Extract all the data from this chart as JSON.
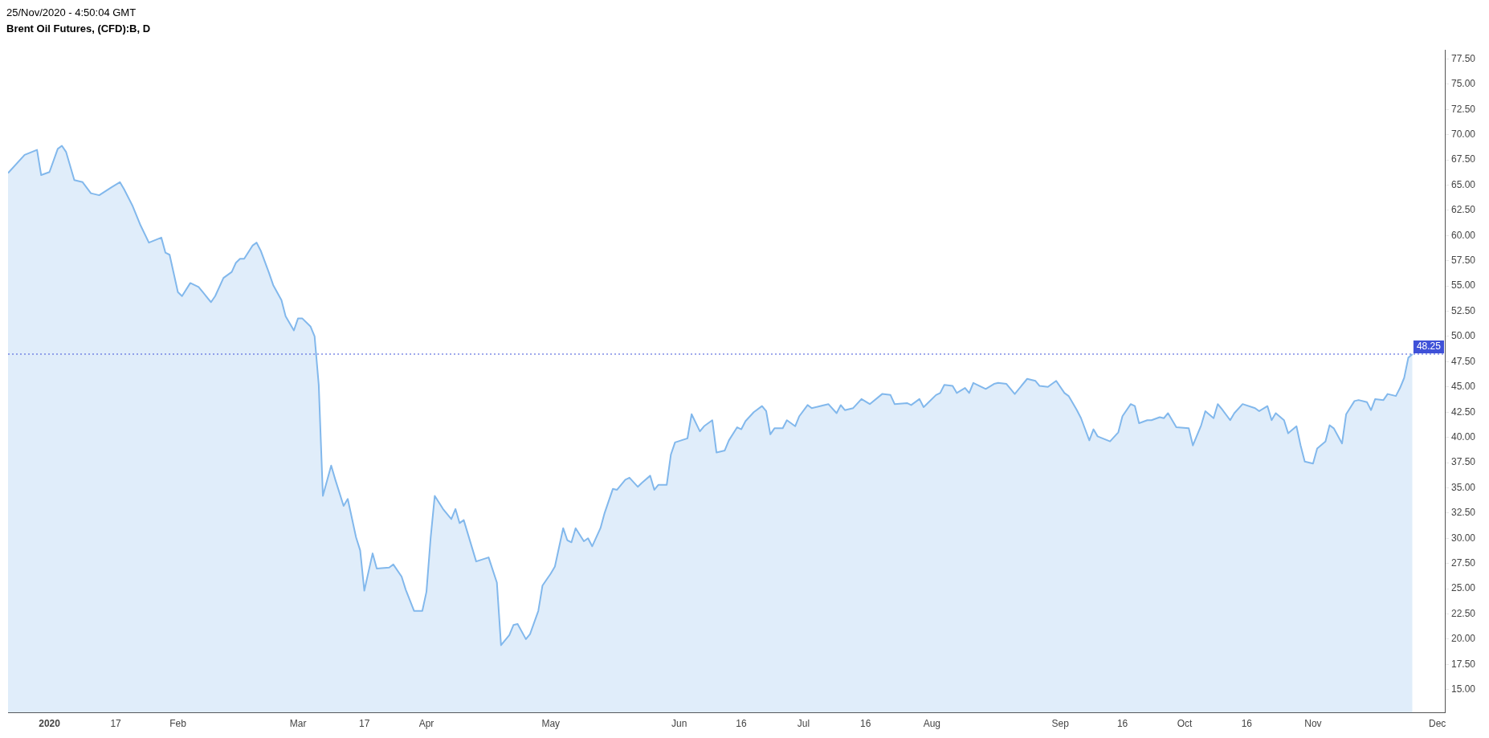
{
  "chart_data": {
    "type": "area",
    "title": "Brent Oil Futures, (CFD):B, D",
    "annotations": [
      "25/Nov/2020 - 4:50:04 GMT"
    ],
    "x": [
      "2019-12-22",
      "2019-12-26",
      "2019-12-29",
      "2019-12-30",
      "2020-01-01",
      "2020-01-03",
      "2020-01-04",
      "2020-01-05",
      "2020-01-07",
      "2020-01-09",
      "2020-01-11",
      "2020-01-13",
      "2020-01-16",
      "2020-01-18",
      "2020-01-19",
      "2020-01-21",
      "2020-01-23",
      "2020-01-25",
      "2020-01-28",
      "2020-01-29",
      "2020-01-30",
      "2020-02-01",
      "2020-02-02",
      "2020-02-04",
      "2020-02-06",
      "2020-02-07",
      "2020-02-09",
      "2020-02-10",
      "2020-02-12",
      "2020-02-14",
      "2020-02-15",
      "2020-02-16",
      "2020-02-17",
      "2020-02-19",
      "2020-02-20",
      "2020-02-21",
      "2020-02-23",
      "2020-02-24",
      "2020-02-26",
      "2020-02-27",
      "2020-02-29",
      "2020-03-01",
      "2020-03-02",
      "2020-03-04",
      "2020-03-05",
      "2020-03-06",
      "2020-03-07",
      "2020-03-09",
      "2020-03-10",
      "2020-03-12",
      "2020-03-13",
      "2020-03-15",
      "2020-03-16",
      "2020-03-17",
      "2020-03-19",
      "2020-03-20",
      "2020-03-23",
      "2020-03-24",
      "2020-03-26",
      "2020-03-27",
      "2020-03-29",
      "2020-03-31",
      "2020-04-01",
      "2020-04-02",
      "2020-04-03",
      "2020-04-05",
      "2020-04-07",
      "2020-04-08",
      "2020-04-09",
      "2020-04-10",
      "2020-04-13",
      "2020-04-16",
      "2020-04-18",
      "2020-04-19",
      "2020-04-21",
      "2020-04-22",
      "2020-04-23",
      "2020-04-25",
      "2020-04-26",
      "2020-04-28",
      "2020-04-29",
      "2020-05-01",
      "2020-05-02",
      "2020-05-04",
      "2020-05-05",
      "2020-05-06",
      "2020-05-07",
      "2020-05-09",
      "2020-05-10",
      "2020-05-11",
      "2020-05-13",
      "2020-05-14",
      "2020-05-16",
      "2020-05-17",
      "2020-05-19",
      "2020-05-20",
      "2020-05-22",
      "2020-05-23",
      "2020-05-25",
      "2020-05-26",
      "2020-05-27",
      "2020-05-29",
      "2020-05-30",
      "2020-05-31",
      "2020-06-03",
      "2020-06-04",
      "2020-06-06",
      "2020-06-07",
      "2020-06-09",
      "2020-06-10",
      "2020-06-12",
      "2020-06-13",
      "2020-06-15",
      "2020-06-16",
      "2020-06-17",
      "2020-06-19",
      "2020-06-21",
      "2020-06-22",
      "2020-06-23",
      "2020-06-24",
      "2020-06-26",
      "2020-06-27",
      "2020-06-29",
      "2020-06-30",
      "2020-07-02",
      "2020-07-03",
      "2020-07-05",
      "2020-07-07",
      "2020-07-09",
      "2020-07-10",
      "2020-07-11",
      "2020-07-13",
      "2020-07-15",
      "2020-07-17",
      "2020-07-20",
      "2020-07-22",
      "2020-07-23",
      "2020-07-26",
      "2020-07-27",
      "2020-07-29",
      "2020-07-30",
      "2020-07-31",
      "2020-08-02",
      "2020-08-03",
      "2020-08-04",
      "2020-08-06",
      "2020-08-07",
      "2020-08-09",
      "2020-08-10",
      "2020-08-11",
      "2020-08-13",
      "2020-08-14",
      "2020-08-16",
      "2020-08-17",
      "2020-08-19",
      "2020-08-21",
      "2020-08-24",
      "2020-08-26",
      "2020-08-27",
      "2020-08-29",
      "2020-08-30",
      "2020-08-31",
      "2020-09-02",
      "2020-09-03",
      "2020-09-05",
      "2020-09-06",
      "2020-09-08",
      "2020-09-09",
      "2020-09-10",
      "2020-09-13",
      "2020-09-15",
      "2020-09-16",
      "2020-09-18",
      "2020-09-19",
      "2020-09-20",
      "2020-09-22",
      "2020-09-23",
      "2020-09-25",
      "2020-09-26",
      "2020-09-27",
      "2020-09-29",
      "2020-10-02",
      "2020-10-03",
      "2020-10-05",
      "2020-10-06",
      "2020-10-08",
      "2020-10-09",
      "2020-10-10",
      "2020-10-12",
      "2020-10-13",
      "2020-10-15",
      "2020-10-18",
      "2020-10-19",
      "2020-10-21",
      "2020-10-22",
      "2020-10-23",
      "2020-10-25",
      "2020-10-26",
      "2020-10-28",
      "2020-10-29",
      "2020-10-30",
      "2020-11-01",
      "2020-11-02",
      "2020-11-04",
      "2020-11-05",
      "2020-11-06",
      "2020-11-08",
      "2020-11-09",
      "2020-11-11",
      "2020-11-12",
      "2020-11-14",
      "2020-11-15",
      "2020-11-16",
      "2020-11-18",
      "2020-11-19",
      "2020-11-21",
      "2020-11-22",
      "2020-11-23",
      "2020-11-24",
      "2020-11-25"
    ],
    "series": [
      {
        "color": "#82b8ec",
        "values": [
          66.2,
          68.0,
          68.5,
          66.0,
          66.3,
          68.6,
          68.9,
          68.3,
          65.5,
          65.3,
          64.2,
          64.0,
          64.8,
          65.3,
          64.6,
          63.0,
          61.0,
          59.3,
          59.8,
          58.3,
          58.1,
          54.4,
          54.0,
          55.3,
          54.9,
          54.4,
          53.4,
          54.0,
          55.8,
          56.4,
          57.3,
          57.7,
          57.7,
          59.0,
          59.3,
          58.5,
          56.3,
          55.1,
          53.6,
          52.0,
          50.6,
          51.8,
          51.8,
          51.0,
          50.0,
          45.2,
          34.2,
          37.2,
          35.8,
          33.2,
          33.9,
          30.1,
          28.8,
          24.8,
          28.5,
          27.0,
          27.1,
          27.4,
          26.2,
          24.9,
          22.8,
          22.8,
          24.7,
          30.0,
          34.2,
          32.9,
          31.9,
          32.9,
          31.5,
          31.8,
          27.7,
          28.1,
          25.6,
          19.4,
          20.4,
          21.4,
          21.5,
          20.0,
          20.5,
          22.8,
          25.3,
          26.5,
          27.2,
          31.0,
          29.8,
          29.6,
          31.0,
          29.7,
          30.0,
          29.2,
          31.0,
          32.5,
          34.9,
          34.8,
          35.8,
          36.0,
          35.1,
          35.5,
          36.2,
          34.8,
          35.3,
          35.3,
          38.3,
          39.5,
          39.9,
          42.3,
          40.6,
          41.1,
          41.7,
          38.5,
          38.7,
          39.7,
          41.0,
          40.8,
          41.6,
          42.5,
          43.1,
          42.6,
          40.3,
          40.9,
          40.9,
          41.7,
          41.1,
          42.1,
          43.2,
          42.9,
          43.1,
          43.3,
          42.4,
          43.2,
          42.7,
          42.9,
          43.8,
          43.3,
          44.3,
          44.2,
          43.3,
          43.4,
          43.2,
          43.8,
          43.0,
          43.4,
          44.2,
          44.4,
          45.2,
          45.1,
          44.4,
          44.9,
          44.4,
          45.4,
          45.0,
          44.8,
          45.3,
          45.4,
          45.3,
          44.3,
          45.8,
          45.6,
          45.1,
          45.0,
          45.3,
          45.6,
          44.4,
          44.1,
          42.7,
          41.9,
          39.7,
          40.8,
          40.1,
          39.6,
          40.5,
          42.1,
          43.3,
          43.1,
          41.4,
          41.7,
          41.7,
          42.0,
          41.9,
          42.4,
          41.0,
          40.9,
          39.2,
          41.2,
          42.6,
          41.9,
          43.3,
          42.8,
          41.7,
          42.4,
          43.3,
          42.9,
          42.6,
          43.1,
          41.7,
          42.4,
          41.7,
          40.4,
          41.1,
          39.2,
          37.6,
          37.4,
          38.9,
          39.6,
          41.2,
          40.9,
          39.4,
          42.3,
          43.6,
          43.7,
          43.5,
          42.7,
          43.8,
          43.7,
          44.3,
          44.1,
          44.9,
          45.9,
          47.9,
          48.25
        ]
      }
    ],
    "xlim": [
      "2019-12-22",
      "2020-12-03"
    ],
    "xticks": [
      {
        "value": "2020-01-01",
        "label": "2020"
      },
      {
        "value": "2020-01-17",
        "label": "17"
      },
      {
        "value": "2020-02-01",
        "label": "Feb"
      },
      {
        "value": "2020-03-01",
        "label": "Mar"
      },
      {
        "value": "2020-03-17",
        "label": "17"
      },
      {
        "value": "2020-04-01",
        "label": "Apr"
      },
      {
        "value": "2020-05-01",
        "label": "May"
      },
      {
        "value": "2020-06-01",
        "label": "Jun"
      },
      {
        "value": "2020-06-16",
        "label": "16"
      },
      {
        "value": "2020-07-01",
        "label": "Jul"
      },
      {
        "value": "2020-07-16",
        "label": "16"
      },
      {
        "value": "2020-08-01",
        "label": "Aug"
      },
      {
        "value": "2020-09-01",
        "label": "Sep"
      },
      {
        "value": "2020-09-16",
        "label": "16"
      },
      {
        "value": "2020-10-01",
        "label": "Oct"
      },
      {
        "value": "2020-10-16",
        "label": "16"
      },
      {
        "value": "2020-11-01",
        "label": "Nov"
      },
      {
        "value": "2020-12-01",
        "label": "Dec"
      }
    ],
    "ylim": [
      12.7,
      78.4
    ],
    "yticks": [
      {
        "value": 15,
        "label": "15.00"
      },
      {
        "value": 17.5,
        "label": "17.50"
      },
      {
        "value": 20,
        "label": "20.00"
      },
      {
        "value": 22.5,
        "label": "22.50"
      },
      {
        "value": 25,
        "label": "25.00"
      },
      {
        "value": 27.5,
        "label": "27.50"
      },
      {
        "value": 30,
        "label": "30.00"
      },
      {
        "value": 32.5,
        "label": "32.50"
      },
      {
        "value": 35,
        "label": "35.00"
      },
      {
        "value": 37.5,
        "label": "37.50"
      },
      {
        "value": 40,
        "label": "40.00"
      },
      {
        "value": 42.5,
        "label": "42.50"
      },
      {
        "value": 45,
        "label": "45.00"
      },
      {
        "value": 47.5,
        "label": "47.50"
      },
      {
        "value": 50,
        "label": "50.00"
      },
      {
        "value": 52.5,
        "label": "52.50"
      },
      {
        "value": 55,
        "label": "55.00"
      },
      {
        "value": 57.5,
        "label": "57.50"
      },
      {
        "value": 60,
        "label": "60.00"
      },
      {
        "value": 62.5,
        "label": "62.50"
      },
      {
        "value": 65,
        "label": "65.00"
      },
      {
        "value": 67.5,
        "label": "67.50"
      },
      {
        "value": 70,
        "label": "70.00"
      },
      {
        "value": 72.5,
        "label": "72.50"
      },
      {
        "value": 75,
        "label": "75.00"
      },
      {
        "value": 77.5,
        "label": "77.50"
      }
    ],
    "ref_lines": [
      {
        "axis": "y",
        "value": 48.25,
        "label": "48.25",
        "color": "#3f51d8",
        "line_style": "dotted"
      }
    ],
    "grid": false,
    "legend": false,
    "marker": "none"
  }
}
